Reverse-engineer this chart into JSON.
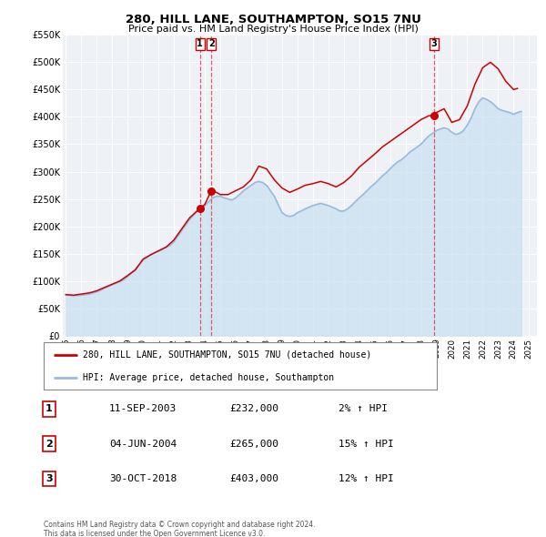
{
  "title": "280, HILL LANE, SOUTHAMPTON, SO15 7NU",
  "subtitle": "Price paid vs. HM Land Registry's House Price Index (HPI)",
  "legend_line1": "280, HILL LANE, SOUTHAMPTON, SO15 7NU (detached house)",
  "legend_line2": "HPI: Average price, detached house, Southampton",
  "footer1": "Contains HM Land Registry data © Crown copyright and database right 2024.",
  "footer2": "This data is licensed under the Open Government Licence v3.0.",
  "sale_color": "#cc0000",
  "hpi_color": "#99bbdd",
  "hpi_fill_color": "#c8dff0",
  "marker_color": "#cc0000",
  "vline_color": "#dd4444",
  "bg_color": "#eef2f7",
  "grid_color": "#ffffff",
  "ylim": [
    0,
    550000
  ],
  "yticks": [
    0,
    50000,
    100000,
    150000,
    200000,
    250000,
    300000,
    350000,
    400000,
    450000,
    500000,
    550000
  ],
  "ytick_labels": [
    "£0",
    "£50K",
    "£100K",
    "£150K",
    "£200K",
    "£250K",
    "£300K",
    "£350K",
    "£400K",
    "£450K",
    "£500K",
    "£550K"
  ],
  "xmin": 1994.8,
  "xmax": 2025.5,
  "transactions": [
    {
      "label": "1",
      "date_num": 2003.69,
      "price": 232000
    },
    {
      "label": "2",
      "date_num": 2004.42,
      "price": 265000
    },
    {
      "label": "3",
      "date_num": 2018.83,
      "price": 403000
    }
  ],
  "table_rows": [
    {
      "num": "1",
      "date": "11-SEP-2003",
      "price": "£232,000",
      "change": "2% ↑ HPI"
    },
    {
      "num": "2",
      "date": "04-JUN-2004",
      "price": "£265,000",
      "change": "15% ↑ HPI"
    },
    {
      "num": "3",
      "date": "30-OCT-2018",
      "price": "£403,000",
      "change": "12% ↑ HPI"
    }
  ],
  "hpi_series": {
    "years": [
      1995.0,
      1995.25,
      1995.5,
      1995.75,
      1996.0,
      1996.25,
      1996.5,
      1996.75,
      1997.0,
      1997.25,
      1997.5,
      1997.75,
      1998.0,
      1998.25,
      1998.5,
      1998.75,
      1999.0,
      1999.25,
      1999.5,
      1999.75,
      2000.0,
      2000.25,
      2000.5,
      2000.75,
      2001.0,
      2001.25,
      2001.5,
      2001.75,
      2002.0,
      2002.25,
      2002.5,
      2002.75,
      2003.0,
      2003.25,
      2003.5,
      2003.75,
      2004.0,
      2004.25,
      2004.5,
      2004.75,
      2005.0,
      2005.25,
      2005.5,
      2005.75,
      2006.0,
      2006.25,
      2006.5,
      2006.75,
      2007.0,
      2007.25,
      2007.5,
      2007.75,
      2008.0,
      2008.25,
      2008.5,
      2008.75,
      2009.0,
      2009.25,
      2009.5,
      2009.75,
      2010.0,
      2010.25,
      2010.5,
      2010.75,
      2011.0,
      2011.25,
      2011.5,
      2011.75,
      2012.0,
      2012.25,
      2012.5,
      2012.75,
      2013.0,
      2013.25,
      2013.5,
      2013.75,
      2014.0,
      2014.25,
      2014.5,
      2014.75,
      2015.0,
      2015.25,
      2015.5,
      2015.75,
      2016.0,
      2016.25,
      2016.5,
      2016.75,
      2017.0,
      2017.25,
      2017.5,
      2017.75,
      2018.0,
      2018.25,
      2018.5,
      2018.75,
      2019.0,
      2019.25,
      2019.5,
      2019.75,
      2020.0,
      2020.25,
      2020.5,
      2020.75,
      2021.0,
      2021.25,
      2021.5,
      2021.75,
      2022.0,
      2022.25,
      2022.5,
      2022.75,
      2023.0,
      2023.25,
      2023.5,
      2023.75,
      2024.0,
      2024.25,
      2024.5
    ],
    "values": [
      75000,
      74000,
      73000,
      73500,
      74000,
      75000,
      76000,
      78000,
      80000,
      83000,
      87000,
      90000,
      93000,
      96000,
      99000,
      102000,
      108000,
      115000,
      122000,
      130000,
      138000,
      143000,
      148000,
      152000,
      155000,
      158000,
      162000,
      165000,
      172000,
      182000,
      192000,
      202000,
      212000,
      220000,
      228000,
      232000,
      238000,
      245000,
      252000,
      255000,
      255000,
      252000,
      250000,
      248000,
      252000,
      258000,
      265000,
      270000,
      275000,
      280000,
      282000,
      280000,
      275000,
      265000,
      255000,
      240000,
      225000,
      220000,
      218000,
      220000,
      225000,
      228000,
      232000,
      235000,
      238000,
      240000,
      242000,
      240000,
      238000,
      235000,
      232000,
      228000,
      228000,
      232000,
      238000,
      245000,
      252000,
      258000,
      265000,
      272000,
      278000,
      285000,
      292000,
      298000,
      305000,
      312000,
      318000,
      322000,
      328000,
      335000,
      340000,
      345000,
      350000,
      358000,
      365000,
      370000,
      375000,
      378000,
      380000,
      378000,
      372000,
      368000,
      370000,
      375000,
      385000,
      398000,
      415000,
      428000,
      435000,
      432000,
      428000,
      422000,
      415000,
      412000,
      410000,
      408000,
      405000,
      408000,
      410000
    ]
  },
  "price_series": {
    "years": [
      1995.0,
      1995.5,
      1996.0,
      1996.5,
      1997.0,
      1997.5,
      1998.0,
      1998.5,
      1999.0,
      1999.5,
      2000.0,
      2000.5,
      2001.0,
      2001.5,
      2002.0,
      2002.5,
      2003.0,
      2003.5,
      2003.69,
      2004.0,
      2004.42,
      2004.75,
      2005.0,
      2005.5,
      2006.0,
      2006.5,
      2007.0,
      2007.5,
      2008.0,
      2008.5,
      2009.0,
      2009.5,
      2010.0,
      2010.5,
      2011.0,
      2011.5,
      2012.0,
      2012.5,
      2013.0,
      2013.5,
      2014.0,
      2014.5,
      2015.0,
      2015.5,
      2016.0,
      2016.5,
      2017.0,
      2017.5,
      2018.0,
      2018.5,
      2018.83,
      2019.0,
      2019.5,
      2020.0,
      2020.5,
      2021.0,
      2021.5,
      2022.0,
      2022.5,
      2023.0,
      2023.5,
      2024.0,
      2024.25
    ],
    "values": [
      75000,
      74000,
      76000,
      78000,
      82000,
      88000,
      94000,
      100000,
      110000,
      120000,
      140000,
      148000,
      155000,
      162000,
      175000,
      195000,
      215000,
      228000,
      232000,
      240000,
      265000,
      262000,
      258000,
      258000,
      265000,
      272000,
      285000,
      310000,
      305000,
      285000,
      270000,
      262000,
      268000,
      275000,
      278000,
      282000,
      278000,
      272000,
      280000,
      292000,
      308000,
      320000,
      332000,
      345000,
      355000,
      365000,
      375000,
      385000,
      395000,
      402000,
      403000,
      408000,
      415000,
      390000,
      395000,
      420000,
      460000,
      490000,
      500000,
      488000,
      465000,
      450000,
      452000
    ]
  }
}
